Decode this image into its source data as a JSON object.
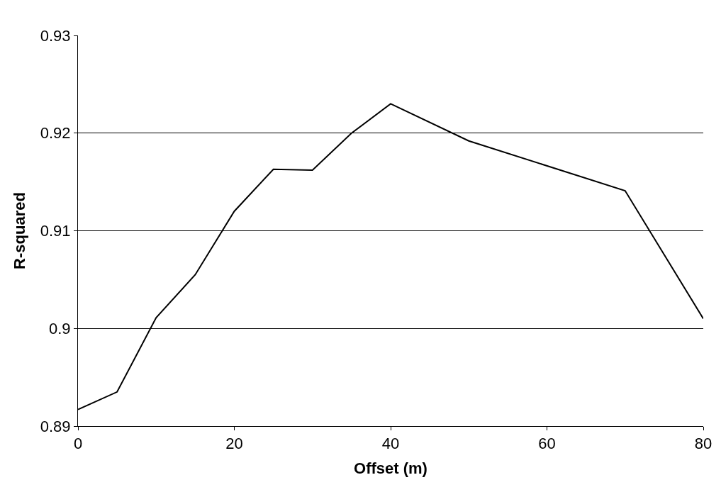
{
  "chart_data": {
    "type": "line",
    "xlabel": "Offset (m)",
    "ylabel": "R-squared",
    "x": [
      0,
      5,
      10,
      15,
      20,
      25,
      30,
      35,
      40,
      50,
      70,
      80
    ],
    "series": [
      {
        "color": "#000000",
        "values": [
          0.8917,
          0.8935,
          0.9011,
          0.9055,
          0.912,
          0.9163,
          0.9162,
          0.92,
          0.923,
          0.9192,
          0.9141,
          0.901
        ]
      }
    ],
    "xlim": [
      0,
      80
    ],
    "xticks": [
      0,
      20,
      40,
      60,
      80
    ],
    "ylim": [
      0.89,
      0.93
    ],
    "yticks": [
      0.89,
      0.9,
      0.91,
      0.92,
      0.93
    ],
    "grid": "y",
    "legend": false,
    "marker": "none",
    "line_style": "solid"
  }
}
